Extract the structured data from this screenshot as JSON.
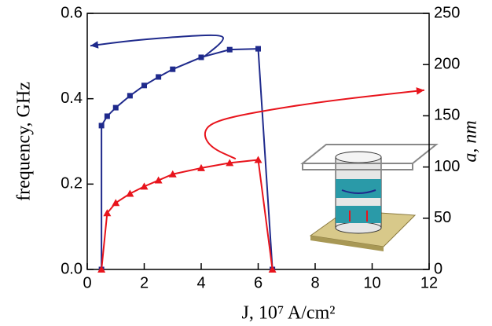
{
  "chart_data": {
    "type": "line",
    "xlabel": "J, 10⁷ A/cm²",
    "ylabel": "frequency, GHz",
    "y2label": "a, nm",
    "xlim": [
      0,
      12
    ],
    "xticks": [
      0,
      2,
      4,
      6,
      8,
      10,
      12
    ],
    "ylim": [
      0,
      0.6
    ],
    "yticks": [
      {
        "value": 0,
        "label": "0.0"
      },
      0.2,
      0.4,
      0.6
    ],
    "y2lim": [
      0,
      250
    ],
    "y2ticks": [
      0,
      50,
      100,
      150,
      200,
      250
    ],
    "series": [
      {
        "color": "#1f2a8c",
        "marker": "square",
        "axis": "y",
        "x": [
          0.5,
          0.5,
          0.7,
          1,
          1.5,
          2,
          2.5,
          3,
          4,
          5,
          6,
          6.5
        ],
        "values": [
          0,
          0.337,
          0.359,
          0.379,
          0.407,
          0.431,
          0.451,
          0.469,
          0.497,
          0.515,
          0.517,
          0
        ]
      },
      {
        "color": "#1f2a8c",
        "marker": "arrow",
        "axis": "y",
        "x": [
          4.11,
          4.8,
          4.74,
          3.56,
          1.63,
          0.11
        ],
        "values": [
          0.499,
          0.536,
          0.55,
          0.547,
          0.537,
          0.524
        ]
      },
      {
        "color": "#e8141c",
        "marker": "triangle",
        "axis": "y2",
        "x": [
          0.5,
          0.7,
          1,
          1.5,
          2,
          2.5,
          3,
          4,
          5,
          6,
          6.5
        ],
        "values": [
          0,
          55,
          65,
          74,
          81,
          87,
          93,
          99,
          104,
          107,
          0
        ]
      },
      {
        "color": "#e8141c",
        "marker": "arrow",
        "axis": "y2",
        "x": [
          5.21,
          4.33,
          4.06,
          4.39,
          5.77,
          8.52,
          11.83
        ],
        "values": [
          108,
          119,
          133,
          144,
          153,
          165,
          175
        ]
      }
    ]
  }
}
